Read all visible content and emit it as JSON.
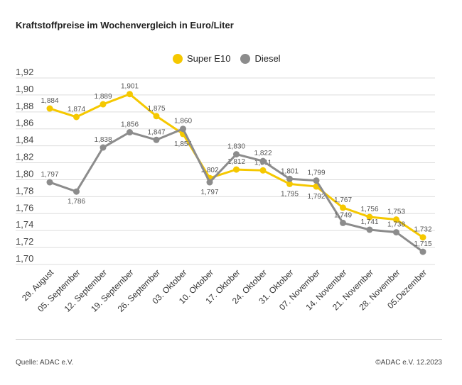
{
  "title": "Kraftstoffpreise im Wochenvergleich in Euro/Liter",
  "source": "Quelle: ADAC e.V.",
  "copyright": "©ADAC e.V. 12.2023",
  "chart_data": {
    "type": "line",
    "title": "Kraftstoffpreise im Wochenvergleich in Euro/Liter",
    "categories": [
      "29. August",
      "05. September",
      "12. September",
      "19. September",
      "26. September",
      "03. Oktober",
      "10. Oktober",
      "17. Oktober",
      "24. Oktober",
      "31. Oktober",
      "07. November",
      "14. November",
      "21. November",
      "28. November",
      "05.Dezember"
    ],
    "series": [
      {
        "name": "Super E10",
        "color": "#f5c800",
        "values": [
          1.884,
          1.874,
          1.889,
          1.901,
          1.875,
          1.854,
          1.802,
          1.812,
          1.811,
          1.795,
          1.792,
          1.767,
          1.756,
          1.753,
          1.732
        ]
      },
      {
        "name": "Diesel",
        "color": "#8c8c8c",
        "values": [
          1.797,
          1.786,
          1.838,
          1.856,
          1.847,
          1.86,
          1.797,
          1.83,
          1.822,
          1.801,
          1.799,
          1.749,
          1.741,
          1.738,
          1.715
        ]
      }
    ],
    "yticks": [
      "1,92",
      "1,90",
      "1,88",
      "1,86",
      "1,84",
      "1,82",
      "1,80",
      "1,78",
      "1,76",
      "1,74",
      "1,72",
      "1,70"
    ],
    "ylim": [
      1.7,
      1.92
    ],
    "grid": true,
    "legend": "top-center"
  }
}
